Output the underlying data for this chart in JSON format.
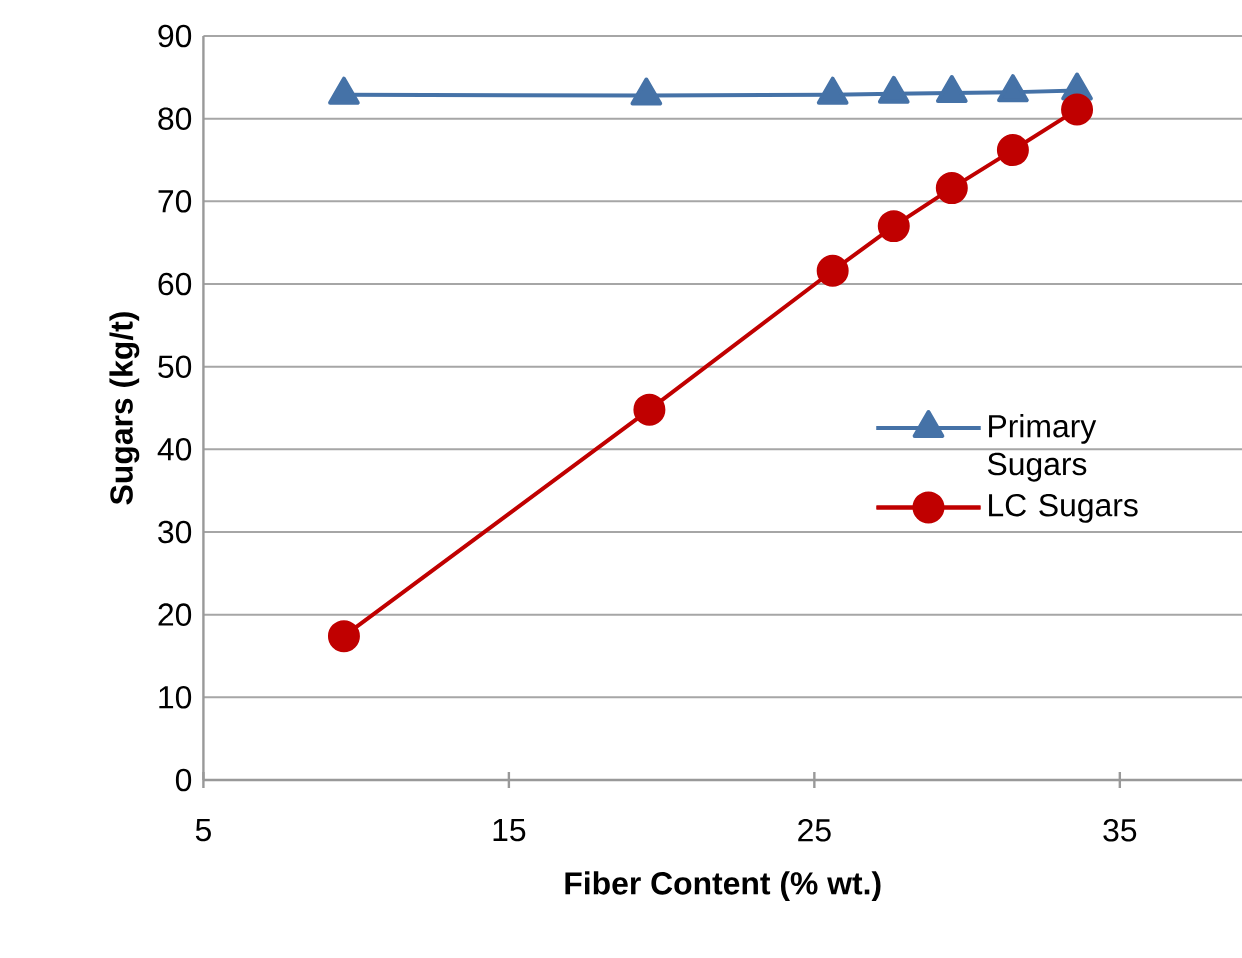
{
  "chart_data": {
    "type": "line",
    "xlabel": "Fiber Content (% wt.)",
    "ylabel": "Sugars (kg/t)",
    "xlim": [
      5,
      39
    ],
    "xticks": [
      5,
      15,
      25,
      35
    ],
    "ylim": [
      0,
      90
    ],
    "yticks": [
      0,
      10,
      20,
      30,
      40,
      50,
      60,
      70,
      80,
      90
    ],
    "grid": "y",
    "legend": "right",
    "series": [
      {
        "name": "Primary Sugars",
        "color": "#4572a7",
        "marker": "triangle",
        "x": [
          9.6,
          19.5,
          25.6,
          27.6,
          29.5,
          31.5,
          33.6
        ],
        "values": [
          82.9,
          82.8,
          82.9,
          83.0,
          83.1,
          83.2,
          83.4
        ]
      },
      {
        "name": "LC Sugars",
        "color": "#c00000",
        "marker": "circle",
        "x": [
          9.6,
          19.6,
          25.6,
          27.6,
          29.5,
          31.5,
          33.6
        ],
        "values": [
          17.4,
          44.8,
          61.6,
          67.0,
          71.6,
          76.2,
          81.1
        ]
      }
    ]
  }
}
